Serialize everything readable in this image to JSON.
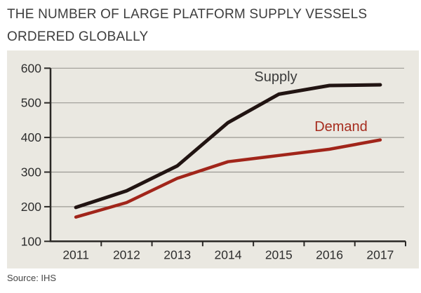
{
  "page": {
    "title_lines": [
      "THE NUMBER OF LARGE PLATFORM SUPPLY VESSELS",
      "ORDERED GLOBALLY"
    ],
    "source": "Source: IHS"
  },
  "colors": {
    "panel_bg": "#eae8e1",
    "grid": "#9c9a94",
    "axis": "#2b2926",
    "title_text": "#3d3d3d",
    "tick_text": "#2e2e2e",
    "source_text": "#454545"
  },
  "chart_data": {
    "type": "line",
    "title": "THE NUMBER OF LARGE PLATFORM SUPPLY VESSELS ORDERED GLOBALLY",
    "categories": [
      "2011",
      "2012",
      "2013",
      "2014",
      "2015",
      "2016",
      "2017"
    ],
    "series": [
      {
        "name": "Supply",
        "color": "#211412",
        "label_color": "#3a3a3a",
        "values": [
          198,
          246,
          318,
          443,
          525,
          550,
          552
        ]
      },
      {
        "name": "Demand",
        "color": "#a1251a",
        "label_color": "#a62c1e",
        "values": [
          170,
          212,
          282,
          330,
          348,
          366,
          393
        ]
      }
    ],
    "ylim": [
      100,
      600
    ],
    "yticks": [
      100,
      200,
      300,
      400,
      500,
      600
    ],
    "grid": true,
    "legend_position": "inline-labels",
    "source": "Source: IHS"
  }
}
